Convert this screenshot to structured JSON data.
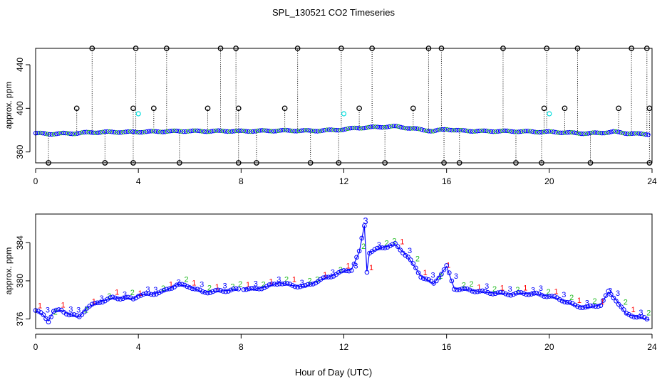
{
  "title": "SPL_130521  CO2 Timeseries",
  "xlabel": "Hour of Day (UTC)",
  "colors": {
    "series_1": "#ff0000",
    "series_2": "#22bb22",
    "series_3": "#0000ff",
    "flag_marker": "#000000",
    "alt_marker": "#00dddd",
    "line": "#0000ff"
  },
  "chart_data": [
    {
      "type": "scatter",
      "panel": "top",
      "ylabel": "approx. ppm",
      "xlim": [
        0,
        24
      ],
      "ylim": [
        350,
        455
      ],
      "xticks": [
        0,
        4,
        8,
        12,
        16,
        20,
        24
      ],
      "yticks": [
        360,
        400,
        440
      ],
      "baseline": [
        [
          0,
          377.2
        ],
        [
          0.5,
          376.5
        ],
        [
          1,
          376.9
        ],
        [
          1.5,
          377.0
        ],
        [
          2,
          377.8
        ],
        [
          2.5,
          378.1
        ],
        [
          3,
          378.3
        ],
        [
          3.5,
          378.2
        ],
        [
          4,
          378.4
        ],
        [
          4.5,
          378.6
        ],
        [
          5,
          378.8
        ],
        [
          5.5,
          379.0
        ],
        [
          6,
          379.2
        ],
        [
          6.5,
          379.0
        ],
        [
          7,
          379.1
        ],
        [
          7.5,
          379.2
        ],
        [
          8,
          379.0
        ],
        [
          8.5,
          379.2
        ],
        [
          9,
          379.4
        ],
        [
          9.5,
          379.5
        ],
        [
          10,
          379.6
        ],
        [
          10.5,
          379.4
        ],
        [
          11,
          379.5
        ],
        [
          11.5,
          380.0
        ],
        [
          12,
          380.6
        ],
        [
          12.5,
          382.0
        ],
        [
          13,
          382.5
        ],
        [
          13.5,
          383.0
        ],
        [
          14,
          383.4
        ],
        [
          14.5,
          382.0
        ],
        [
          15,
          380.5
        ],
        [
          15.5,
          379.0
        ],
        [
          16,
          381.0
        ],
        [
          16.5,
          379.5
        ],
        [
          17,
          379.3
        ],
        [
          17.5,
          379.0
        ],
        [
          18,
          379.1
        ],
        [
          18.5,
          378.9
        ],
        [
          19,
          378.8
        ],
        [
          19.5,
          378.5
        ],
        [
          20,
          378.4
        ],
        [
          20.5,
          378.0
        ],
        [
          21,
          377.3
        ],
        [
          21.5,
          377.0
        ],
        [
          22,
          377.5
        ],
        [
          22.5,
          378.5
        ],
        [
          23,
          377.2
        ],
        [
          23.5,
          376.5
        ],
        [
          23.9,
          376.2
        ]
      ],
      "flag_high_hours": [
        2.2,
        3.9,
        5.1,
        7.2,
        7.8,
        10.2,
        11.9,
        13.1,
        15.3,
        15.8,
        18.2,
        19.9,
        21.1,
        23.2,
        23.8
      ],
      "flag_high_value": 455,
      "flag_mid_hours": [
        1.6,
        3.8,
        4.6,
        6.7,
        7.9,
        9.7,
        12.6,
        14.7,
        19.8,
        20.6,
        22.7,
        23.9
      ],
      "flag_mid_value": 400,
      "flag_low_hours": [
        0.5,
        2.7,
        3.8,
        5.6,
        7.9,
        8.6,
        10.7,
        11.8,
        13.6,
        15.9,
        16.5,
        18.7,
        19.7,
        21.6,
        23.9
      ],
      "flag_low_value": 350,
      "alt_points": [
        [
          4.0,
          395
        ],
        [
          12.0,
          395
        ],
        [
          20.0,
          395
        ]
      ]
    },
    {
      "type": "line",
      "panel": "bottom",
      "ylabel": "approx. ppm",
      "xlim": [
        0,
        24
      ],
      "ylim": [
        375,
        387
      ],
      "xticks": [
        0,
        4,
        8,
        12,
        16,
        20,
        24
      ],
      "yticks": [
        376,
        380,
        384
      ],
      "marker_labels": [
        "1",
        "2",
        "3"
      ],
      "series": [
        [
          0,
          376.9
        ],
        [
          0.3,
          376.4
        ],
        [
          0.5,
          375.8
        ],
        [
          0.7,
          376.8
        ],
        [
          1.0,
          376.9
        ],
        [
          1.3,
          376.5
        ],
        [
          1.7,
          376.2
        ],
        [
          2.0,
          377.2
        ],
        [
          2.5,
          377.8
        ],
        [
          3.0,
          378.2
        ],
        [
          3.5,
          378.2
        ],
        [
          3.8,
          378.1
        ],
        [
          4.0,
          378.5
        ],
        [
          4.5,
          378.6
        ],
        [
          5.0,
          378.9
        ],
        [
          5.5,
          379.6
        ],
        [
          6.0,
          379.4
        ],
        [
          6.5,
          378.8
        ],
        [
          7.0,
          378.9
        ],
        [
          7.5,
          379.0
        ],
        [
          7.9,
          379.1
        ],
        [
          8.1,
          379.2
        ],
        [
          8.5,
          379.1
        ],
        [
          9.0,
          379.4
        ],
        [
          9.5,
          379.8
        ],
        [
          10.0,
          379.5
        ],
        [
          10.5,
          379.4
        ],
        [
          11.0,
          380.0
        ],
        [
          11.5,
          380.5
        ],
        [
          12.0,
          381.0
        ],
        [
          12.3,
          381.2
        ],
        [
          12.6,
          383.0
        ],
        [
          12.8,
          385.8
        ],
        [
          12.9,
          381.0
        ],
        [
          13.0,
          383.0
        ],
        [
          13.5,
          383.5
        ],
        [
          14.0,
          383.8
        ],
        [
          14.5,
          382.5
        ],
        [
          15.0,
          380.5
        ],
        [
          15.5,
          379.7
        ],
        [
          16.0,
          381.5
        ],
        [
          16.3,
          379.2
        ],
        [
          17.0,
          379.0
        ],
        [
          17.5,
          378.8
        ],
        [
          18.0,
          378.7
        ],
        [
          18.5,
          378.6
        ],
        [
          19.0,
          378.7
        ],
        [
          19.5,
          378.6
        ],
        [
          20.0,
          378.4
        ],
        [
          20.5,
          378.0
        ],
        [
          21.0,
          377.4
        ],
        [
          21.5,
          377.2
        ],
        [
          22.0,
          377.5
        ],
        [
          22.3,
          378.8
        ],
        [
          22.6,
          378.0
        ],
        [
          23.0,
          376.5
        ],
        [
          23.5,
          376.2
        ],
        [
          23.9,
          375.9
        ]
      ]
    }
  ]
}
